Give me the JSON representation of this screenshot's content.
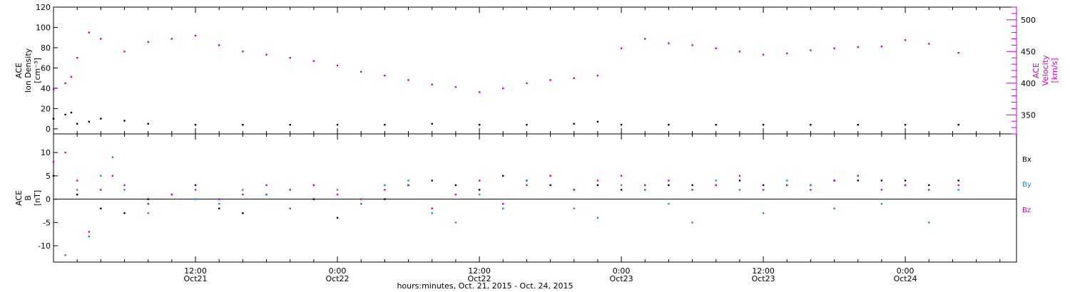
{
  "colors": {
    "black": "#000000",
    "magenta": "#cc00cc",
    "blue": "#1e88e5"
  },
  "time_axis": {
    "ticks": [
      {
        "time": "12:00",
        "date": "Oct21",
        "hours": 12
      },
      {
        "time": "0:00",
        "date": "Oct22",
        "hours": 24
      },
      {
        "time": "12:00",
        "date": "Oct22",
        "hours": 36
      },
      {
        "time": "0:00",
        "date": "Oct23",
        "hours": 48
      },
      {
        "time": "12:00",
        "date": "Oct23",
        "hours": 60
      },
      {
        "time": "0:00",
        "date": "Oct24",
        "hours": 72
      }
    ],
    "xlabel": "hours:minutes, Oct. 21, 2015 - Oct. 24, 2015",
    "xlim_hours": [
      0,
      81.4
    ]
  },
  "chart_data": [
    {
      "type": "scatter",
      "panel": "top",
      "ylabel_left": [
        "ACE",
        "Ion Density",
        "[cm⁻³]"
      ],
      "ylabel_right": [
        "ACE",
        "Velocity",
        "[km/s]"
      ],
      "ylim_left": [
        -5,
        120
      ],
      "ylim_right": [
        320,
        520
      ],
      "yticks_left": [
        0,
        20,
        40,
        60,
        80,
        100,
        120
      ],
      "yticks_right": [
        350,
        400,
        450,
        500
      ],
      "series": [
        {
          "axis": "left",
          "color": "#000000",
          "x_hours": [
            0,
            1,
            1.5,
            2,
            3,
            4,
            6,
            8,
            12,
            16,
            20,
            24,
            28,
            32,
            36,
            40,
            44,
            46,
            48,
            52,
            56,
            60,
            64,
            68,
            72,
            76.5
          ],
          "values": [
            10,
            14,
            16,
            5,
            7,
            10,
            8,
            5,
            4,
            4,
            4,
            4,
            4,
            5,
            4,
            4,
            5,
            7,
            4,
            4,
            4,
            4,
            4,
            4,
            4,
            4
          ]
        },
        {
          "axis": "right",
          "color": "#cc00cc",
          "x_hours": [
            0,
            1,
            1.5,
            2,
            3,
            4,
            6,
            8,
            10,
            12,
            14,
            16,
            18,
            20,
            22,
            24,
            26,
            28,
            30,
            32,
            34,
            36,
            38,
            40,
            42,
            44,
            46,
            48,
            50,
            52,
            54,
            56,
            58,
            60,
            62,
            64,
            66,
            68,
            70,
            72,
            74,
            76.5
          ],
          "values": [
            390,
            400,
            410,
            440,
            480,
            470,
            450,
            465,
            470,
            475,
            460,
            450,
            445,
            440,
            435,
            428,
            418,
            412,
            405,
            398,
            394,
            386,
            392,
            400,
            405,
            408,
            412,
            455,
            470,
            463,
            460,
            455,
            450,
            445,
            447,
            452,
            455,
            457,
            458,
            468,
            462,
            448
          ]
        }
      ]
    },
    {
      "type": "scatter",
      "panel": "bottom",
      "ylabel_left": [
        "ACE",
        "B",
        "[nT]"
      ],
      "ylim": [
        -13.5,
        14
      ],
      "yticks": [
        -10,
        -5,
        0,
        5,
        10
      ],
      "legend": [
        "Bx",
        "By",
        "Bz"
      ],
      "legend_placement": "right",
      "series": [
        {
          "name": "Bx",
          "color": "#000000",
          "x_hours": [
            0,
            2,
            4,
            6,
            8,
            10,
            12,
            14,
            16,
            18,
            20,
            22,
            24,
            26,
            28,
            30,
            32,
            34,
            36,
            38,
            40,
            42,
            44,
            46,
            48,
            50,
            52,
            54,
            56,
            58,
            60,
            62,
            64,
            66,
            68,
            70,
            72,
            74,
            76.5
          ],
          "values": [
            5,
            1,
            -2,
            -3,
            0,
            1,
            3,
            -2,
            -3,
            1,
            -2,
            0,
            -4,
            -1,
            0,
            3,
            4,
            3,
            2,
            5,
            4,
            3,
            2,
            3,
            2,
            2,
            3,
            3,
            3,
            4,
            3,
            3,
            3,
            4,
            4,
            4,
            4,
            3,
            4
          ]
        },
        {
          "name": "By",
          "color": "#1e88e5",
          "x_hours": [
            0,
            1,
            2,
            3,
            4,
            5,
            6,
            8,
            10,
            12,
            14,
            16,
            18,
            20,
            22,
            24,
            26,
            28,
            30,
            32,
            34,
            36,
            38,
            40,
            42,
            44,
            46,
            48,
            50,
            52,
            54,
            56,
            58,
            60,
            62,
            64,
            66,
            68,
            70,
            72,
            74,
            76.5
          ],
          "values": [
            -5,
            -12,
            2,
            -8,
            5,
            9,
            2,
            -3,
            1,
            0,
            -1,
            2,
            1,
            -2,
            3,
            2,
            -1,
            3,
            4,
            -3,
            -5,
            1,
            -2,
            4,
            5,
            -2,
            -4,
            3,
            2,
            -1,
            -5,
            4,
            2,
            -3,
            4,
            3,
            -2,
            5,
            -1,
            3,
            -5,
            2
          ]
        },
        {
          "name": "Bz",
          "color": "#cc00cc",
          "x_hours": [
            0,
            1,
            2,
            3,
            4,
            5,
            6,
            8,
            10,
            12,
            14,
            16,
            18,
            20,
            22,
            24,
            26,
            28,
            30,
            32,
            34,
            36,
            38,
            40,
            42,
            44,
            46,
            48,
            50,
            52,
            54,
            56,
            58,
            60,
            62,
            64,
            66,
            68,
            70,
            72,
            74,
            76.5
          ],
          "values": [
            8,
            10,
            4,
            -7,
            2,
            5,
            3,
            -1,
            1,
            2,
            0,
            1,
            3,
            2,
            3,
            1,
            0,
            2,
            3,
            -2,
            1,
            4,
            -1,
            3,
            5,
            2,
            4,
            5,
            3,
            4,
            2,
            3,
            5,
            2,
            3,
            2,
            4,
            5,
            2,
            3,
            2,
            3
          ]
        }
      ]
    }
  ]
}
